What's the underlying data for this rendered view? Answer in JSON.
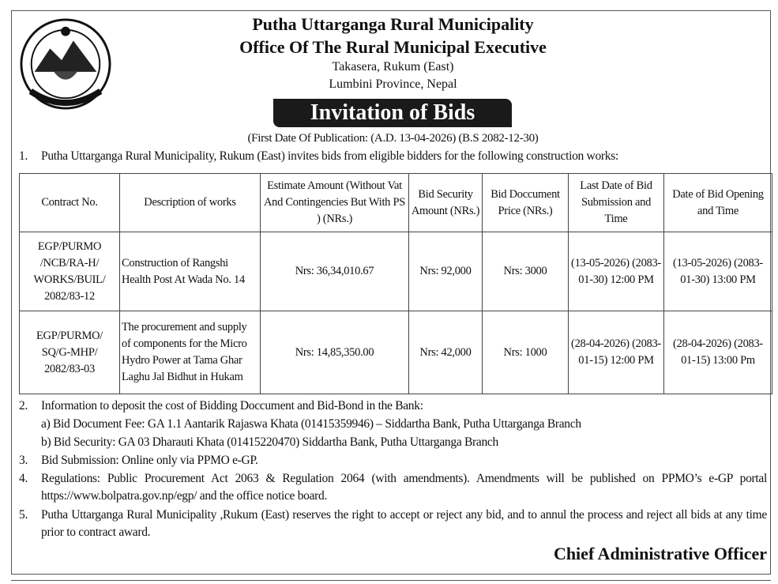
{
  "header": {
    "line1": "Putha Uttarganga Rural Municipality",
    "line2": "Office Of The Rural Municipal Executive",
    "line3": "Takasera, Rukum (East)",
    "line4": "Lumbini Province, Nepal",
    "banner": "Invitation of Bids",
    "publication": "(First Date Of Publication:  (A.D. 13-04-2026) (B.S 2082-12-30)",
    "logo": "emblem-seal"
  },
  "intro": {
    "num": "1.",
    "text": "Putha Uttarganga Rural Municipality, Rukum (East) invites bids from eligible bidders for the following construction works:"
  },
  "table": {
    "headers": [
      "Contract  No.",
      "Description of works",
      "Estimate Amount (Without Vat And Contingencies But With PS ) (NRs.)",
      "Bid Security Amount (NRs.)",
      "Bid Doccument Price (NRs.)",
      "Last Date of Bid Submission and Time",
      "Date of Bid Opening and Time"
    ],
    "rows": [
      [
        "EGP/PURMO /NCB/RA-H/ WORKS/BUIL/ 2082/83-12",
        "Construction of Rangshi Health Post At Wada No. 14",
        "Nrs: 36,34,010.67",
        "Nrs: 92,000",
        "Nrs: 3000",
        "(13-05-2026) (2083-01-30) 12:00 PM",
        "(13-05-2026) (2083-01-30) 13:00  PM"
      ],
      [
        "EGP/PURMO/ SQ/G-MHP/ 2082/83-03",
        "The procurement and supply of components for the Micro Hydro Power at Tama Ghar Laghu Jal Bidhut in Hukam",
        "Nrs: 14,85,350.00",
        "Nrs: 42,000",
        "Nrs: 1000",
        "(28-04-2026) (2083-01-15) 12:00 PM",
        "(28-04-2026) (2083-01-15) 13:00 Pm"
      ]
    ]
  },
  "points": [
    {
      "num": "2.",
      "text": "Information to deposit the cost of Bidding Doccument and Bid-Bond in the Bank:"
    },
    {
      "num": "",
      "text": "a) Bid Document Fee: GA 1.1 Aantarik Rajaswa Khata (01415359946) – Siddartha Bank, Putha Uttarganga Branch"
    },
    {
      "num": "",
      "text": "b) Bid Security: GA 03 Dharauti Khata (01415220470) Siddartha Bank, Putha Uttarganga Branch"
    },
    {
      "num": "3.",
      "text": "Bid Submission: Online only via PPMO e-GP."
    },
    {
      "num": "4.",
      "text": "Regulations: Public Procurement Act 2063 & Regulation 2064 (with amendments). Amendments will be published on PPMO’s e-GP portal https://www.bolpatra.gov.np/egp/  and the office notice board."
    },
    {
      "num": "5.",
      "text": "Putha Uttarganga Rural Municipality ,Rukum (East)   reserves the right to accept or reject any bid, and to annul the process and  reject all bids at any time prior to contract award."
    }
  ],
  "signature": "Chief Administrative Officer"
}
